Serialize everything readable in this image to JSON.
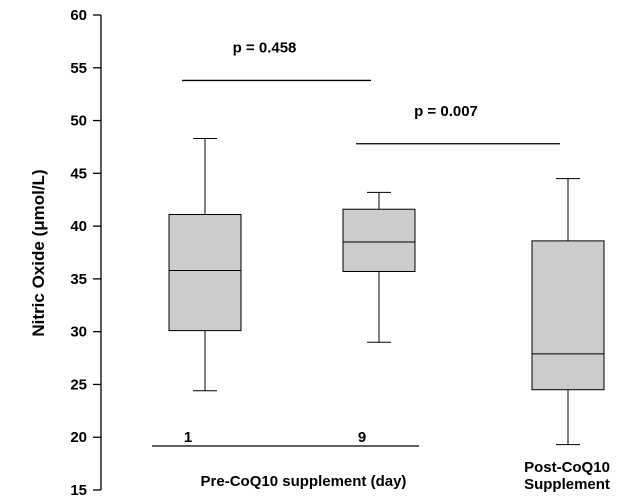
{
  "chart_data": {
    "type": "box",
    "ylabel": "Nitric Oxide (μmol/L)",
    "ylim": [
      15,
      60
    ],
    "yticks": [
      15,
      20,
      25,
      30,
      35,
      40,
      45,
      50,
      55,
      60
    ],
    "grid": false,
    "box_color": "#cccccc",
    "boxes": [
      {
        "label": "1",
        "whisker_low": 24.4,
        "q1": 30.1,
        "median": 35.8,
        "q3": 41.1,
        "whisker_high": 48.3
      },
      {
        "label": "9",
        "whisker_low": 29.0,
        "q1": 35.7,
        "median": 38.5,
        "q3": 41.6,
        "whisker_high": 43.2
      },
      {
        "label": "",
        "whisker_low": 19.3,
        "q1": 24.5,
        "median": 27.9,
        "q3": 38.6,
        "whisker_high": 44.5
      }
    ],
    "group_labels": [
      {
        "text": "Pre-CoQ10 supplement (day)",
        "boxes": [
          0,
          1
        ]
      },
      {
        "lines": [
          "Post-CoQ10",
          "Supplement"
        ],
        "boxes": [
          2
        ]
      }
    ],
    "comparisons": [
      {
        "text": "p = 0.458",
        "boxes": [
          0,
          1
        ],
        "y": 53.8
      },
      {
        "text": "p = 0.007",
        "boxes": [
          1,
          2
        ],
        "y": 47.8
      }
    ]
  }
}
